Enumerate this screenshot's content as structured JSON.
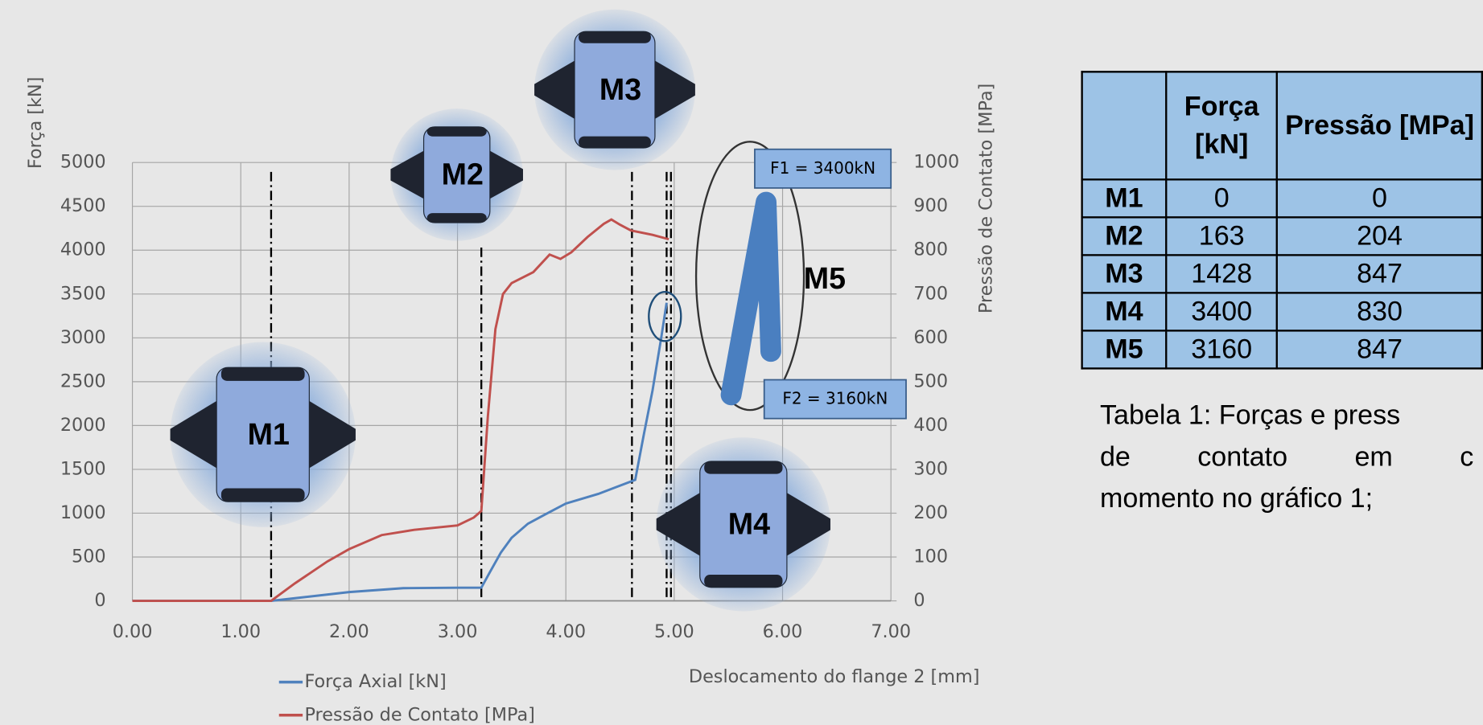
{
  "chart_data": {
    "type": "line",
    "y_label": "Força [kN]",
    "y2_label": "Pressão de Contato [MPa]",
    "x_label": "Deslocamento do flange 2 [mm]",
    "xlim": [
      0,
      7
    ],
    "ylim": [
      0,
      5000
    ],
    "y2lim": [
      0,
      1000
    ],
    "xticks": [
      {
        "value": 0,
        "label": "0.00"
      },
      {
        "value": 1,
        "label": "1.00"
      },
      {
        "value": 2,
        "label": "2.00"
      },
      {
        "value": 3,
        "label": "3.00"
      },
      {
        "value": 4,
        "label": "4.00"
      },
      {
        "value": 5,
        "label": "5.00"
      },
      {
        "value": 6,
        "label": "6.00"
      },
      {
        "value": 7,
        "label": "7.00"
      }
    ],
    "yticks": [
      0,
      500,
      1000,
      1500,
      2000,
      2500,
      3000,
      3500,
      4000,
      4500,
      5000
    ],
    "y2ticks": [
      0,
      100,
      200,
      300,
      400,
      500,
      600,
      700,
      800,
      900,
      1000
    ],
    "grid": true,
    "legend": "bottom",
    "series": [
      {
        "name": "Força Axial [kN]",
        "color": "#4f81bd",
        "x": [
          0,
          1.28,
          1.5,
          2.0,
          2.5,
          3.0,
          3.22,
          3.3,
          3.4,
          3.5,
          3.65,
          3.8,
          4.0,
          4.3,
          4.64,
          4.72,
          4.8,
          4.88,
          4.93
        ],
        "values": [
          0,
          0,
          30,
          100,
          145,
          150,
          150,
          330,
          550,
          720,
          880,
          980,
          1110,
          1220,
          1380,
          1900,
          2400,
          3000,
          3400
        ]
      },
      {
        "name": "Pressão de Contato [MPa]",
        "color": "#c0504d",
        "axis": "y2",
        "x": [
          0,
          1.28,
          1.5,
          1.8,
          2.0,
          2.3,
          2.6,
          3.0,
          3.15,
          3.22,
          3.28,
          3.35,
          3.42,
          3.5,
          3.7,
          3.85,
          3.95,
          4.05,
          4.2,
          4.35,
          4.42,
          4.5,
          4.6,
          4.8,
          4.95
        ],
        "values": [
          0,
          0,
          40,
          90,
          118,
          150,
          162,
          172,
          190,
          205,
          420,
          620,
          700,
          725,
          750,
          790,
          780,
          795,
          830,
          860,
          870,
          858,
          845,
          835,
          825
        ]
      }
    ],
    "markers": [
      {
        "label": "M1",
        "x": 1.28
      },
      {
        "label": "M2",
        "x": 3.22
      },
      {
        "label": "M3",
        "x": 4.61
      },
      {
        "label": "M4",
        "x": 4.93
      },
      {
        "label": "M5",
        "x": 4.97
      }
    ],
    "annotations": [
      "F1 = 3400kN",
      "F2 = 3160kN"
    ]
  },
  "table": {
    "header": [
      "Força [kN]",
      "Pressão [MPa]"
    ],
    "rows": [
      [
        "M1",
        0,
        0
      ],
      [
        "M2",
        163,
        204
      ],
      [
        "M3",
        1428,
        847
      ],
      [
        "M4",
        3400,
        830
      ],
      [
        "M5",
        3160,
        847
      ]
    ],
    "caption": [
      "Tabela 1: Forças e press",
      "de contato em c",
      "momento no gráfico 1;"
    ]
  }
}
